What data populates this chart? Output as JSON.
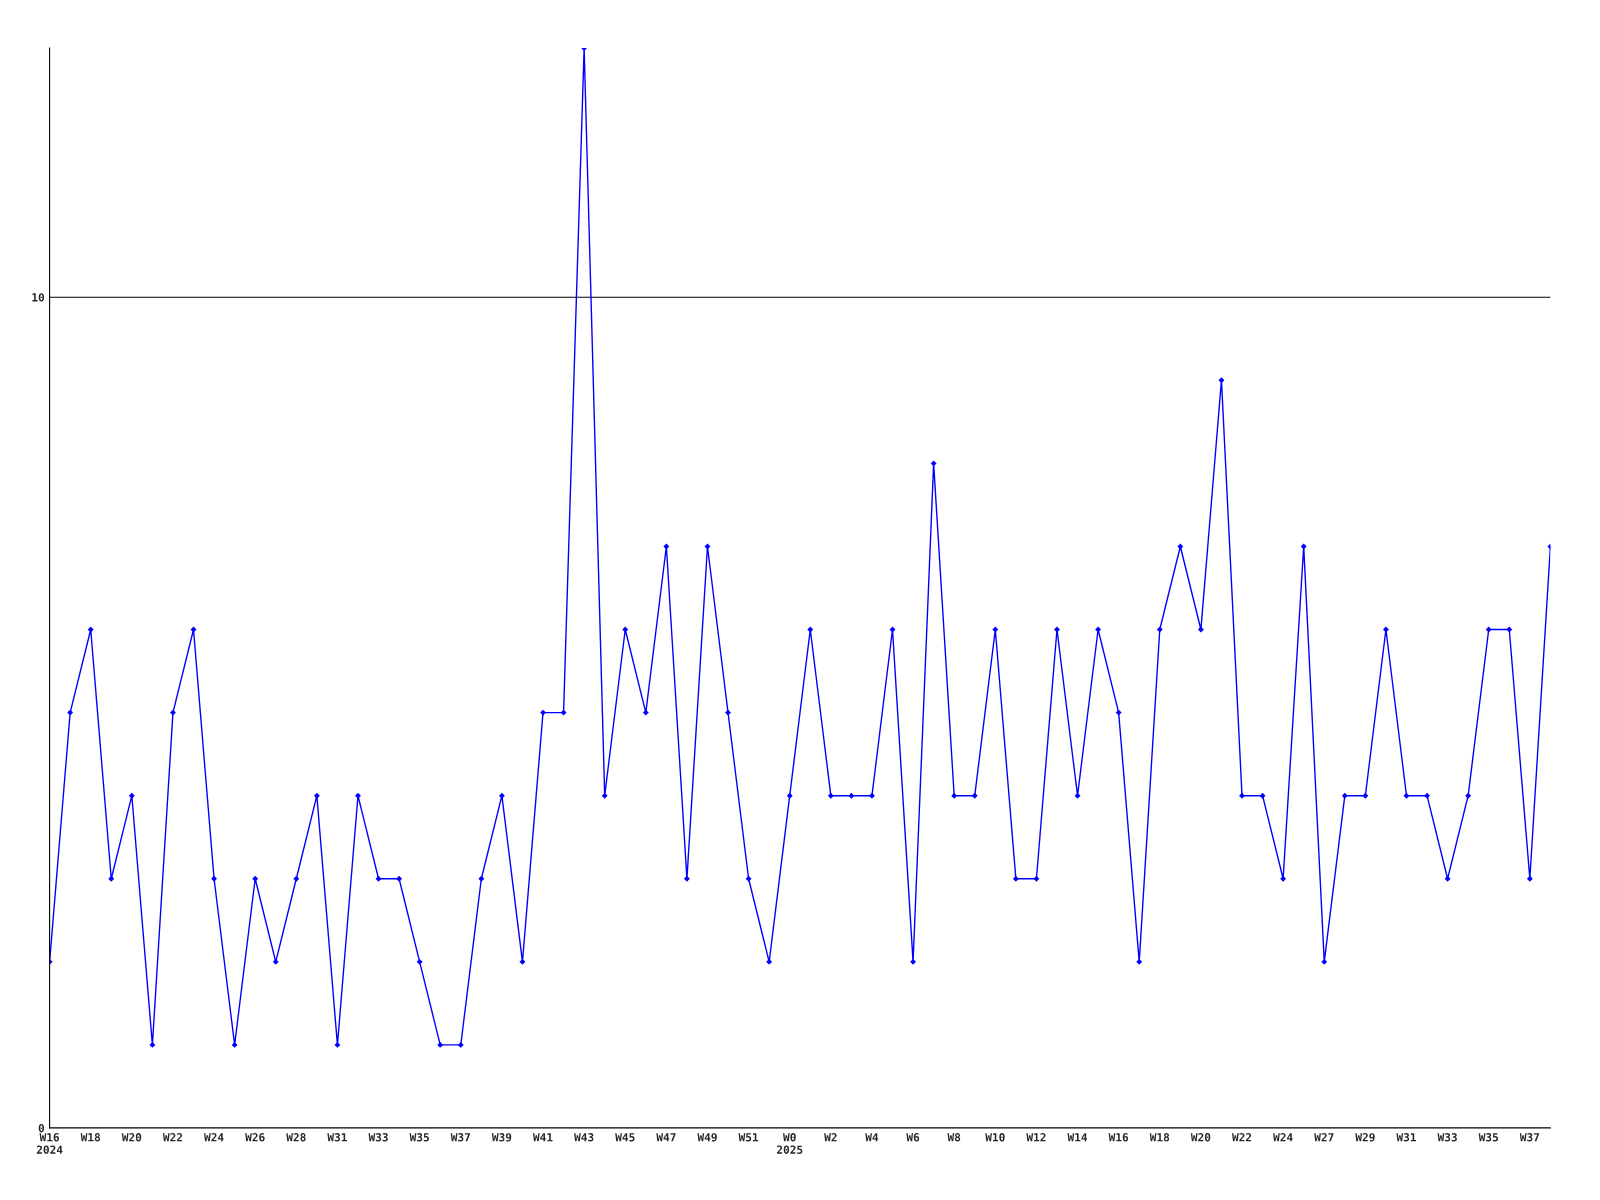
{
  "chart_data": {
    "type": "line",
    "categories": [
      "W16\n2024",
      null,
      "W18",
      null,
      "W20",
      null,
      "W22",
      null,
      "W24",
      null,
      "W26",
      null,
      "W28",
      null,
      "W31",
      null,
      "W33",
      null,
      "W35",
      null,
      "W37",
      null,
      "W39",
      null,
      "W41",
      null,
      "W43",
      null,
      "W45",
      null,
      "W47",
      null,
      "W49",
      null,
      "W51",
      null,
      "W0\n2025",
      null,
      "W2",
      null,
      "W4",
      null,
      "W6",
      null,
      "W8",
      null,
      "W10",
      null,
      "W12",
      null,
      "W14",
      null,
      "W16",
      null,
      "W18",
      null,
      "W20",
      null,
      "W22",
      null,
      "W24",
      null,
      "W27",
      null,
      "W29",
      null,
      "W31",
      null,
      "W33",
      null,
      "W35",
      null,
      "W37",
      null
    ],
    "series": [
      {
        "color": "#0000ff",
        "values": [
          2,
          5,
          6,
          3,
          4,
          1,
          5,
          6,
          3,
          1,
          3,
          2,
          3,
          4,
          1,
          4,
          3,
          3,
          2,
          1,
          1,
          3,
          4,
          2,
          5,
          5,
          13,
          4,
          6,
          5,
          7,
          3,
          7,
          5,
          3,
          2,
          4,
          6,
          4,
          4,
          4,
          6,
          2,
          8,
          4,
          4,
          6,
          3,
          3,
          6,
          4,
          6,
          5,
          2,
          6,
          7,
          6,
          9,
          4,
          4,
          3,
          7,
          2,
          4,
          4,
          6,
          4,
          4,
          3,
          4,
          6,
          6,
          3,
          7
        ]
      }
    ],
    "ylim": [
      0,
      13
    ],
    "yticks": [
      0,
      10
    ],
    "grid": "y",
    "marker": "diamond",
    "line_style": "solid"
  }
}
